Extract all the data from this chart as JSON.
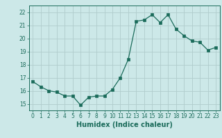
{
  "x": [
    0,
    1,
    2,
    3,
    4,
    5,
    6,
    7,
    8,
    9,
    10,
    11,
    12,
    13,
    14,
    15,
    16,
    17,
    18,
    19,
    20,
    21,
    22,
    23
  ],
  "y": [
    16.7,
    16.3,
    16.0,
    15.9,
    15.6,
    15.6,
    14.9,
    15.5,
    15.6,
    15.6,
    16.1,
    17.0,
    18.4,
    21.3,
    21.4,
    21.8,
    21.2,
    21.8,
    20.7,
    20.2,
    19.8,
    19.7,
    19.1,
    19.3
  ],
  "line_color": "#1a6b5a",
  "marker": "s",
  "marker_size": 2.5,
  "bg_color": "#cce8e8",
  "grid_color": "#b0cccc",
  "xlabel": "Humidex (Indice chaleur)",
  "xlim": [
    -0.5,
    23.5
  ],
  "ylim": [
    14.5,
    22.5
  ],
  "yticks": [
    15,
    16,
    17,
    18,
    19,
    20,
    21,
    22
  ],
  "xticks": [
    0,
    1,
    2,
    3,
    4,
    5,
    6,
    7,
    8,
    9,
    10,
    11,
    12,
    13,
    14,
    15,
    16,
    17,
    18,
    19,
    20,
    21,
    22,
    23
  ],
  "font_color": "#1a6b5a",
  "tick_fontsize": 5.5,
  "label_fontsize": 7
}
